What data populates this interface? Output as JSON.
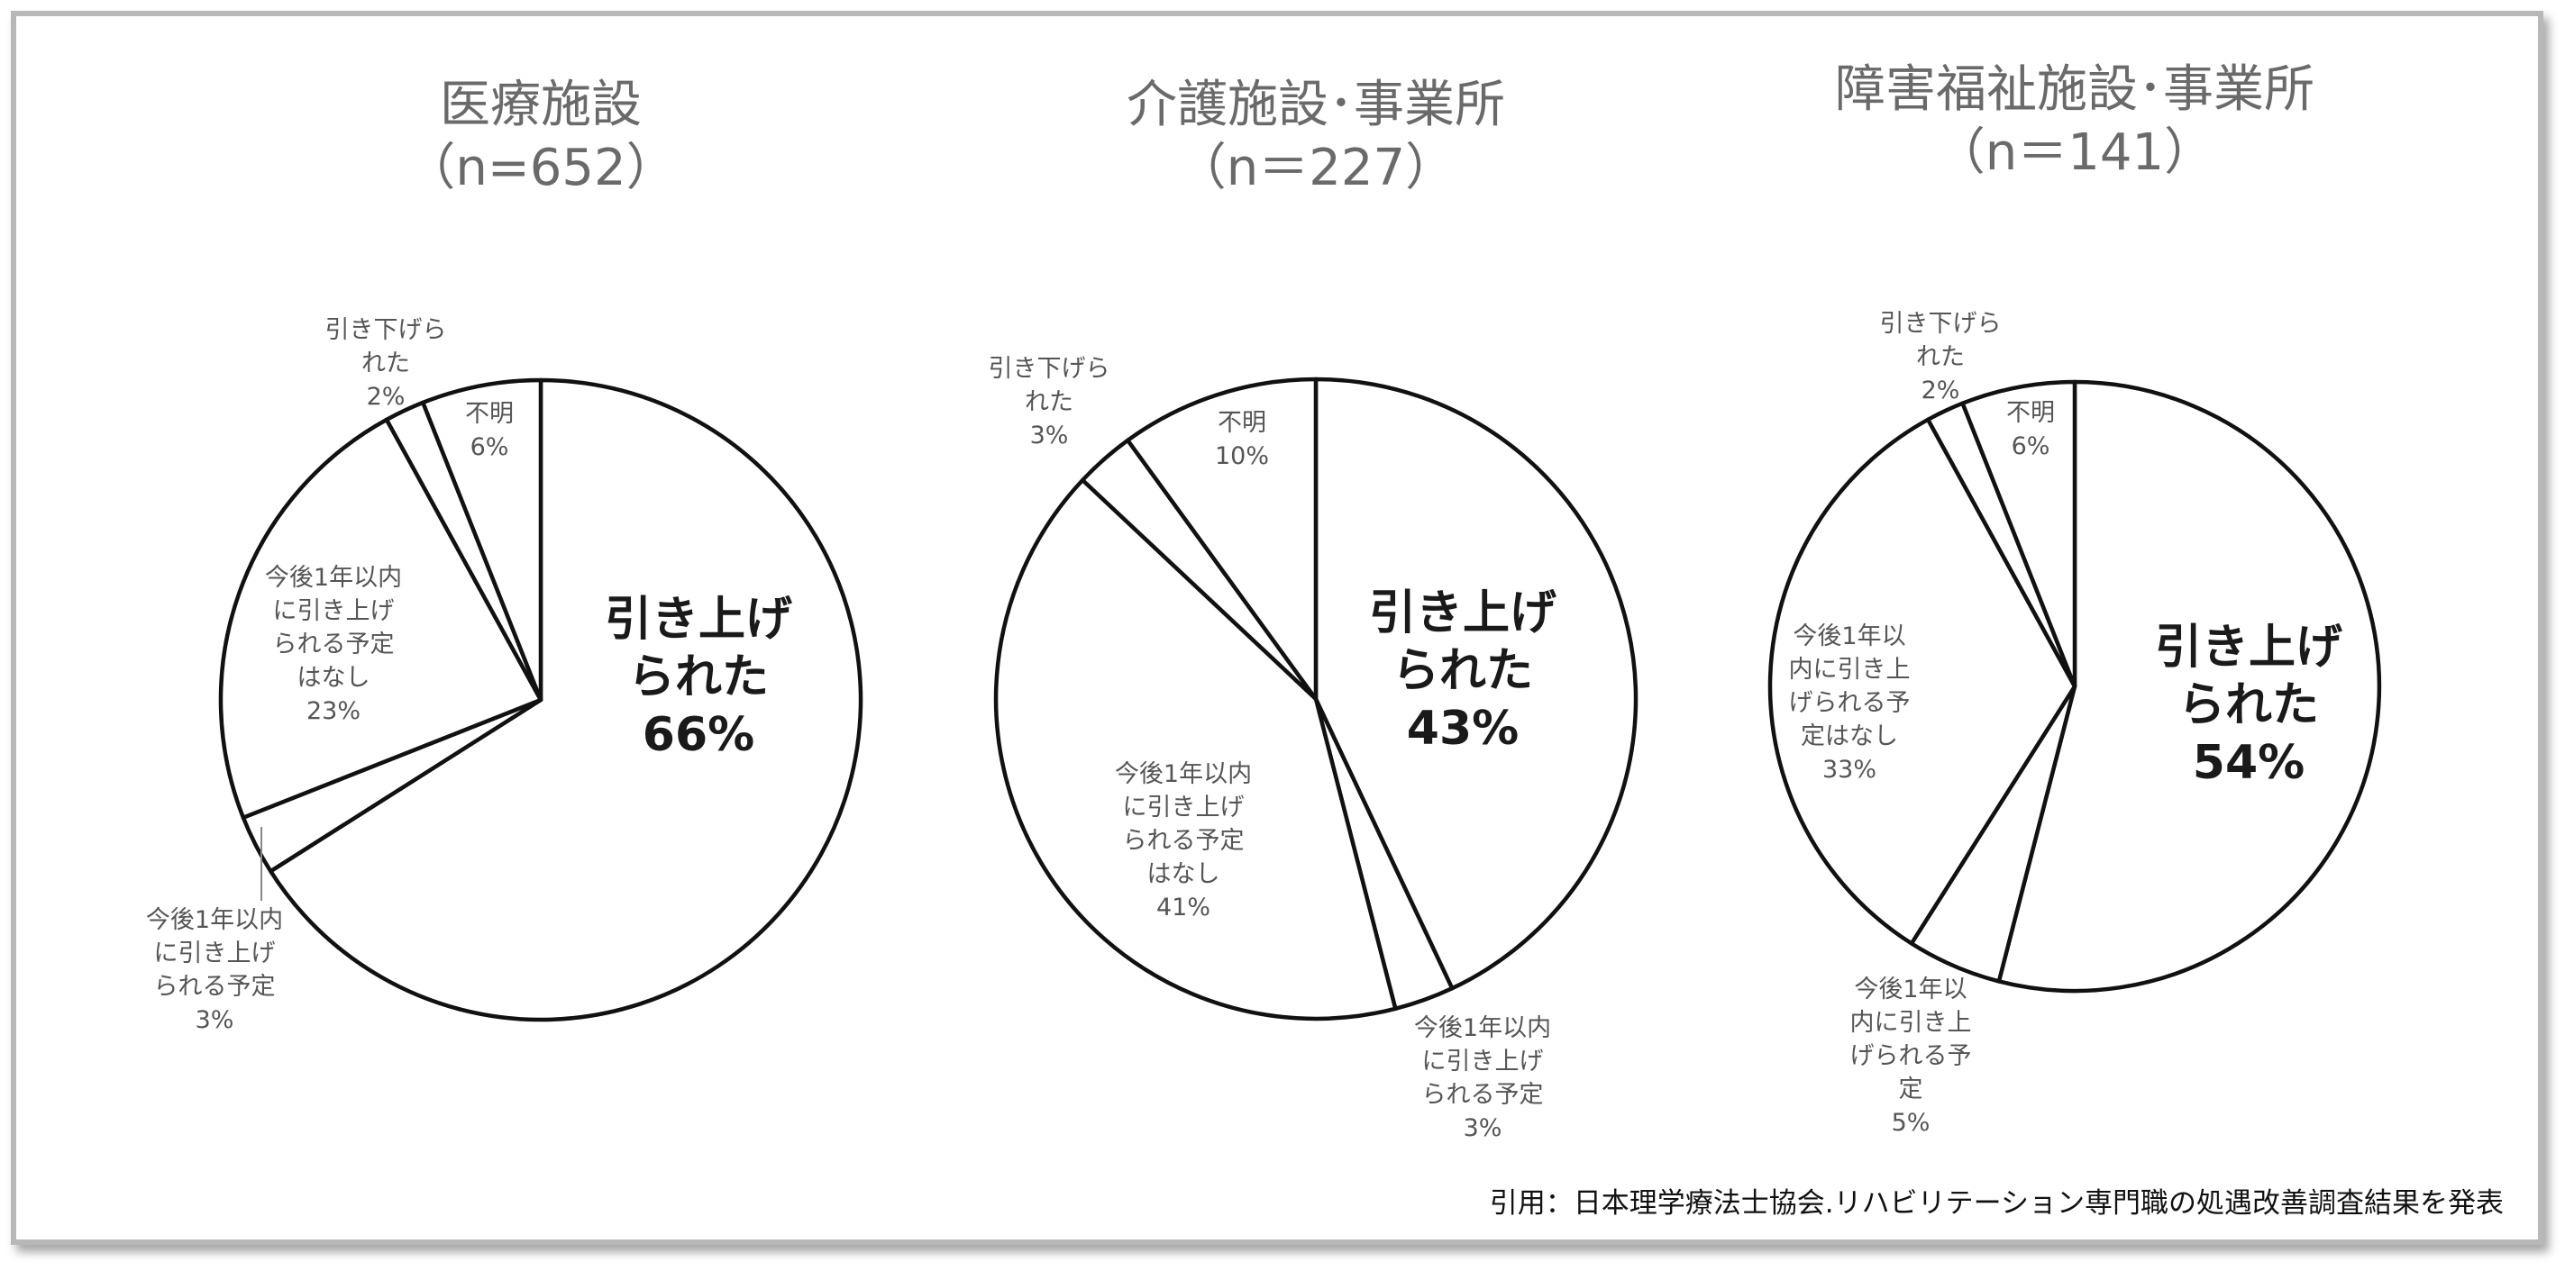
{
  "chart_data": [
    {
      "type": "pie",
      "title": "医療施設",
      "subtitle": "（n=652）",
      "slices": [
        {
          "label": "引き上げられた",
          "value": 66,
          "text": "66%"
        },
        {
          "label": "今後1年以内に引き上げられる予定",
          "value": 3,
          "text": "3%"
        },
        {
          "label": "今後1年以内に引き上げられる予定はなし",
          "value": 23,
          "text": "23%"
        },
        {
          "label": "引き下げられた",
          "value": 2,
          "text": "2%"
        },
        {
          "label": "不明",
          "value": 6,
          "text": "6%"
        }
      ]
    },
    {
      "type": "pie",
      "title": "介護施設･事業所",
      "subtitle": "（n＝227）",
      "slices": [
        {
          "label": "引き上げられた",
          "value": 43,
          "text": "43%"
        },
        {
          "label": "今後1年以内に引き上げられる予定",
          "value": 3,
          "text": "3%"
        },
        {
          "label": "今後1年以内に引き上げられる予定はなし",
          "value": 41,
          "text": "41%"
        },
        {
          "label": "引き下げられた",
          "value": 3,
          "text": "3%"
        },
        {
          "label": "不明",
          "value": 10,
          "text": "10%"
        }
      ]
    },
    {
      "type": "pie",
      "title": "障害福祉施設･事業所",
      "subtitle": "（n＝141）",
      "slices": [
        {
          "label": "引き上げられた",
          "value": 54,
          "text": "54%"
        },
        {
          "label": "今後1年以内に引き上げられる予定",
          "value": 5,
          "text": "5%"
        },
        {
          "label": "今後1年以内に引き上げられる予定はなし",
          "value": 33,
          "text": "33%"
        },
        {
          "label": "引き下げられた",
          "value": 2,
          "text": "2%"
        },
        {
          "label": "不明",
          "value": 6,
          "text": "6%"
        }
      ]
    }
  ],
  "source_text": "引用：日本理学療法士協会.リハビリテーション専門職の処遇改善調査結果を発表"
}
